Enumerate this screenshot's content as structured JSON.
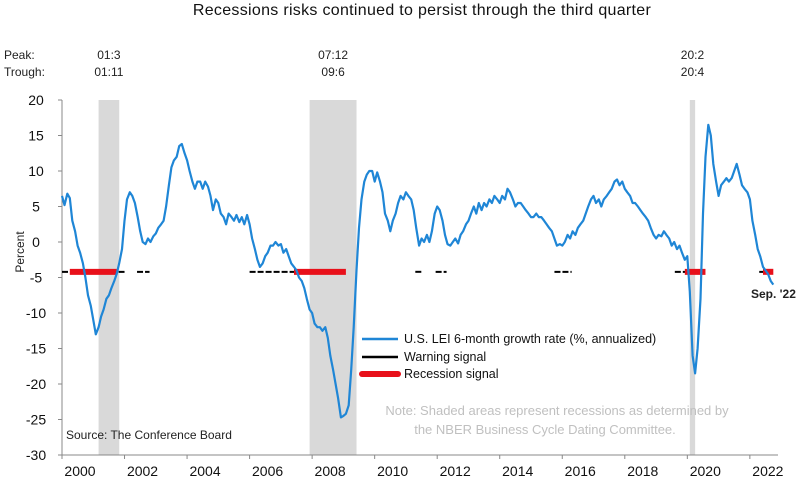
{
  "chart_data": {
    "type": "line",
    "title": "Recessions risks continued to persist through the third quarter",
    "ylabel": "Percent",
    "xlabel": "",
    "ylim": [
      -30,
      20
    ],
    "xlim": [
      2000,
      2022.9
    ],
    "yticks": [
      20,
      15,
      10,
      5,
      0,
      -5,
      -10,
      -15,
      -20,
      -25,
      -30
    ],
    "xticks": [
      "2000",
      "2002",
      "2004",
      "2006",
      "2008",
      "2010",
      "2012",
      "2014",
      "2016",
      "2018",
      "2020",
      "2022"
    ],
    "peak_label": "Peak:",
    "trough_label": "Trough:",
    "recessions": [
      {
        "start": 2001.17,
        "end": 2001.83,
        "peak": "01:3",
        "trough": "01:11"
      },
      {
        "start": 2007.92,
        "end": 2009.42,
        "peak": "07:12",
        "trough": "09:6"
      },
      {
        "start": 2020.08,
        "end": 2020.25,
        "peak": "20:2",
        "trough": "20:4"
      }
    ],
    "series": [
      {
        "name": "U.S. LEI 6-month growth rate (%, annualized)",
        "color": "#1f86d6",
        "points": [
          [
            2000.0,
            6.5
          ],
          [
            2000.08,
            5.2
          ],
          [
            2000.17,
            6.8
          ],
          [
            2000.25,
            6.2
          ],
          [
            2000.33,
            3.0
          ],
          [
            2000.42,
            1.5
          ],
          [
            2000.5,
            -0.5
          ],
          [
            2000.58,
            -1.5
          ],
          [
            2000.67,
            -3.0
          ],
          [
            2000.75,
            -5.0
          ],
          [
            2000.83,
            -7.5
          ],
          [
            2000.92,
            -9.0
          ],
          [
            2001.0,
            -11.0
          ],
          [
            2001.08,
            -13.0
          ],
          [
            2001.17,
            -12.0
          ],
          [
            2001.25,
            -10.5
          ],
          [
            2001.33,
            -9.5
          ],
          [
            2001.42,
            -8.0
          ],
          [
            2001.5,
            -7.5
          ],
          [
            2001.58,
            -6.5
          ],
          [
            2001.67,
            -5.5
          ],
          [
            2001.75,
            -4.5
          ],
          [
            2001.83,
            -3.0
          ],
          [
            2001.92,
            -1.0
          ],
          [
            2002.0,
            3.0
          ],
          [
            2002.08,
            6.0
          ],
          [
            2002.17,
            7.0
          ],
          [
            2002.25,
            6.5
          ],
          [
            2002.33,
            5.5
          ],
          [
            2002.42,
            3.5
          ],
          [
            2002.5,
            1.5
          ],
          [
            2002.58,
            0.0
          ],
          [
            2002.67,
            -0.3
          ],
          [
            2002.75,
            0.5
          ],
          [
            2002.83,
            0.0
          ],
          [
            2002.92,
            0.8
          ],
          [
            2003.0,
            1.2
          ],
          [
            2003.08,
            2.0
          ],
          [
            2003.17,
            2.5
          ],
          [
            2003.25,
            3.0
          ],
          [
            2003.33,
            5.0
          ],
          [
            2003.42,
            8.0
          ],
          [
            2003.5,
            10.5
          ],
          [
            2003.58,
            11.5
          ],
          [
            2003.67,
            12.0
          ],
          [
            2003.75,
            13.5
          ],
          [
            2003.83,
            13.8
          ],
          [
            2003.92,
            12.5
          ],
          [
            2004.0,
            11.5
          ],
          [
            2004.08,
            10.0
          ],
          [
            2004.17,
            8.5
          ],
          [
            2004.25,
            7.5
          ],
          [
            2004.33,
            8.5
          ],
          [
            2004.42,
            8.5
          ],
          [
            2004.5,
            7.5
          ],
          [
            2004.58,
            8.5
          ],
          [
            2004.67,
            7.8
          ],
          [
            2004.75,
            6.5
          ],
          [
            2004.83,
            4.5
          ],
          [
            2004.92,
            6.0
          ],
          [
            2005.0,
            5.5
          ],
          [
            2005.08,
            4.0
          ],
          [
            2005.17,
            3.5
          ],
          [
            2005.25,
            2.5
          ],
          [
            2005.33,
            4.0
          ],
          [
            2005.42,
            3.5
          ],
          [
            2005.5,
            3.0
          ],
          [
            2005.58,
            3.8
          ],
          [
            2005.67,
            2.8
          ],
          [
            2005.75,
            3.5
          ],
          [
            2005.83,
            2.5
          ],
          [
            2005.92,
            3.8
          ],
          [
            2006.0,
            2.5
          ],
          [
            2006.08,
            0.5
          ],
          [
            2006.17,
            -1.0
          ],
          [
            2006.25,
            -2.5
          ],
          [
            2006.33,
            -3.5
          ],
          [
            2006.42,
            -3.0
          ],
          [
            2006.5,
            -2.0
          ],
          [
            2006.58,
            -1.5
          ],
          [
            2006.67,
            -0.5
          ],
          [
            2006.75,
            -0.5
          ],
          [
            2006.83,
            0.0
          ],
          [
            2006.92,
            -0.5
          ],
          [
            2007.0,
            -0.3
          ],
          [
            2007.08,
            -1.5
          ],
          [
            2007.17,
            -1.0
          ],
          [
            2007.25,
            -2.0
          ],
          [
            2007.33,
            -3.0
          ],
          [
            2007.42,
            -3.5
          ],
          [
            2007.5,
            -4.0
          ],
          [
            2007.58,
            -5.0
          ],
          [
            2007.67,
            -5.5
          ],
          [
            2007.75,
            -6.5
          ],
          [
            2007.83,
            -8.0
          ],
          [
            2007.92,
            -9.5
          ],
          [
            2008.0,
            -10.0
          ],
          [
            2008.08,
            -11.5
          ],
          [
            2008.17,
            -12.0
          ],
          [
            2008.25,
            -12.0
          ],
          [
            2008.33,
            -12.5
          ],
          [
            2008.42,
            -12.0
          ],
          [
            2008.5,
            -13.5
          ],
          [
            2008.58,
            -16.0
          ],
          [
            2008.67,
            -18.0
          ],
          [
            2008.75,
            -20.0
          ],
          [
            2008.83,
            -22.0
          ],
          [
            2008.92,
            -24.7
          ],
          [
            2009.0,
            -24.5
          ],
          [
            2009.08,
            -24.2
          ],
          [
            2009.17,
            -23.0
          ],
          [
            2009.25,
            -18.0
          ],
          [
            2009.33,
            -12.0
          ],
          [
            2009.42,
            -4.0
          ],
          [
            2009.5,
            2.0
          ],
          [
            2009.58,
            6.0
          ],
          [
            2009.67,
            8.5
          ],
          [
            2009.75,
            9.5
          ],
          [
            2009.83,
            10.0
          ],
          [
            2009.92,
            10.0
          ],
          [
            2010.0,
            8.5
          ],
          [
            2010.08,
            9.8
          ],
          [
            2010.17,
            8.5
          ],
          [
            2010.25,
            7.0
          ],
          [
            2010.33,
            4.0
          ],
          [
            2010.42,
            3.0
          ],
          [
            2010.5,
            1.5
          ],
          [
            2010.58,
            3.0
          ],
          [
            2010.67,
            4.0
          ],
          [
            2010.75,
            5.5
          ],
          [
            2010.83,
            6.5
          ],
          [
            2010.92,
            6.0
          ],
          [
            2011.0,
            7.0
          ],
          [
            2011.08,
            6.5
          ],
          [
            2011.17,
            6.0
          ],
          [
            2011.25,
            4.5
          ],
          [
            2011.33,
            2.0
          ],
          [
            2011.42,
            -0.5
          ],
          [
            2011.5,
            0.5
          ],
          [
            2011.58,
            0.0
          ],
          [
            2011.67,
            1.0
          ],
          [
            2011.75,
            0.0
          ],
          [
            2011.83,
            1.5
          ],
          [
            2011.92,
            4.0
          ],
          [
            2012.0,
            5.0
          ],
          [
            2012.08,
            4.5
          ],
          [
            2012.17,
            3.0
          ],
          [
            2012.25,
            1.0
          ],
          [
            2012.33,
            -0.3
          ],
          [
            2012.42,
            -0.5
          ],
          [
            2012.5,
            0.0
          ],
          [
            2012.58,
            0.5
          ],
          [
            2012.67,
            -0.2
          ],
          [
            2012.75,
            1.0
          ],
          [
            2012.83,
            1.5
          ],
          [
            2012.92,
            2.5
          ],
          [
            2013.0,
            3.0
          ],
          [
            2013.08,
            4.0
          ],
          [
            2013.17,
            5.0
          ],
          [
            2013.25,
            4.0
          ],
          [
            2013.33,
            5.5
          ],
          [
            2013.42,
            4.5
          ],
          [
            2013.5,
            5.5
          ],
          [
            2013.58,
            5.0
          ],
          [
            2013.67,
            6.0
          ],
          [
            2013.75,
            5.5
          ],
          [
            2013.83,
            6.5
          ],
          [
            2013.92,
            6.0
          ],
          [
            2014.0,
            5.5
          ],
          [
            2014.08,
            6.5
          ],
          [
            2014.17,
            6.0
          ],
          [
            2014.25,
            7.5
          ],
          [
            2014.33,
            7.0
          ],
          [
            2014.42,
            6.0
          ],
          [
            2014.5,
            5.0
          ],
          [
            2014.58,
            5.5
          ],
          [
            2014.67,
            5.5
          ],
          [
            2014.75,
            5.0
          ],
          [
            2014.83,
            4.5
          ],
          [
            2014.92,
            4.0
          ],
          [
            2015.0,
            3.5
          ],
          [
            2015.08,
            3.5
          ],
          [
            2015.17,
            4.0
          ],
          [
            2015.25,
            3.5
          ],
          [
            2015.33,
            3.5
          ],
          [
            2015.42,
            3.0
          ],
          [
            2015.5,
            2.5
          ],
          [
            2015.58,
            2.0
          ],
          [
            2015.67,
            1.5
          ],
          [
            2015.75,
            0.5
          ],
          [
            2015.83,
            -0.5
          ],
          [
            2015.92,
            -0.3
          ],
          [
            2016.0,
            -0.5
          ],
          [
            2016.08,
            0.0
          ],
          [
            2016.17,
            1.0
          ],
          [
            2016.25,
            0.5
          ],
          [
            2016.33,
            1.5
          ],
          [
            2016.42,
            1.0
          ],
          [
            2016.5,
            2.0
          ],
          [
            2016.58,
            2.5
          ],
          [
            2016.67,
            3.0
          ],
          [
            2016.75,
            4.0
          ],
          [
            2016.83,
            5.0
          ],
          [
            2016.92,
            6.0
          ],
          [
            2017.0,
            6.5
          ],
          [
            2017.08,
            5.5
          ],
          [
            2017.17,
            6.0
          ],
          [
            2017.25,
            5.0
          ],
          [
            2017.33,
            6.0
          ],
          [
            2017.42,
            6.5
          ],
          [
            2017.5,
            7.0
          ],
          [
            2017.58,
            7.5
          ],
          [
            2017.67,
            8.5
          ],
          [
            2017.75,
            8.8
          ],
          [
            2017.83,
            8.0
          ],
          [
            2017.92,
            8.5
          ],
          [
            2018.0,
            7.5
          ],
          [
            2018.08,
            7.0
          ],
          [
            2018.17,
            6.5
          ],
          [
            2018.25,
            5.5
          ],
          [
            2018.33,
            5.5
          ],
          [
            2018.42,
            5.0
          ],
          [
            2018.5,
            4.5
          ],
          [
            2018.58,
            4.0
          ],
          [
            2018.67,
            3.5
          ],
          [
            2018.75,
            3.0
          ],
          [
            2018.83,
            2.0
          ],
          [
            2018.92,
            1.0
          ],
          [
            2019.0,
            0.5
          ],
          [
            2019.08,
            1.0
          ],
          [
            2019.17,
            0.8
          ],
          [
            2019.25,
            1.5
          ],
          [
            2019.33,
            1.0
          ],
          [
            2019.42,
            0.5
          ],
          [
            2019.5,
            -0.5
          ],
          [
            2019.58,
            0.0
          ],
          [
            2019.67,
            -1.0
          ],
          [
            2019.75,
            -0.5
          ],
          [
            2019.83,
            -1.5
          ],
          [
            2019.92,
            -2.5
          ],
          [
            2020.0,
            -2.0
          ],
          [
            2020.08,
            -7.0
          ],
          [
            2020.17,
            -16.0
          ],
          [
            2020.25,
            -18.5
          ],
          [
            2020.33,
            -15.0
          ],
          [
            2020.42,
            -8.0
          ],
          [
            2020.5,
            4.0
          ],
          [
            2020.58,
            12.0
          ],
          [
            2020.67,
            16.5
          ],
          [
            2020.75,
            15.0
          ],
          [
            2020.83,
            11.0
          ],
          [
            2020.92,
            8.5
          ],
          [
            2021.0,
            6.5
          ],
          [
            2021.08,
            8.0
          ],
          [
            2021.17,
            8.5
          ],
          [
            2021.25,
            9.0
          ],
          [
            2021.33,
            8.5
          ],
          [
            2021.42,
            9.0
          ],
          [
            2021.5,
            10.0
          ],
          [
            2021.58,
            11.0
          ],
          [
            2021.67,
            9.5
          ],
          [
            2021.75,
            8.0
          ],
          [
            2021.83,
            7.5
          ],
          [
            2021.92,
            7.0
          ],
          [
            2022.0,
            6.0
          ],
          [
            2022.08,
            3.0
          ],
          [
            2022.17,
            1.0
          ],
          [
            2022.25,
            -1.0
          ],
          [
            2022.33,
            -2.0
          ],
          [
            2022.42,
            -3.5
          ],
          [
            2022.5,
            -4.0
          ],
          [
            2022.58,
            -4.5
          ],
          [
            2022.67,
            -5.5
          ],
          [
            2022.75,
            -6.0
          ]
        ]
      },
      {
        "name": "Warning signal",
        "color": "#000000",
        "level": -4.2,
        "ranges": [
          [
            2000.0,
            2001.25
          ],
          [
            2001.3,
            2002.0
          ],
          [
            2002.4,
            2002.8
          ],
          [
            2006.0,
            2007.6
          ],
          [
            2011.3,
            2011.5
          ],
          [
            2011.95,
            2012.3
          ],
          [
            2015.75,
            2016.3
          ],
          [
            2019.6,
            2020.05
          ],
          [
            2022.3,
            2022.7
          ]
        ]
      },
      {
        "name": "Recession signal",
        "color": "#e8101a",
        "level": -4.2,
        "ranges": [
          [
            2000.25,
            2001.75
          ],
          [
            2007.42,
            2009.08
          ],
          [
            2019.92,
            2020.58
          ],
          [
            2022.42,
            2022.75
          ]
        ]
      }
    ],
    "annotations": {
      "end_label": "Sep. '22",
      "note_line1": "Note: Shaded areas represent recessions as determined by",
      "note_line2": "the NBER Business Cycle Dating Committee.",
      "source": "Source: The Conference Board"
    },
    "legend_position": "right",
    "grid": false
  }
}
